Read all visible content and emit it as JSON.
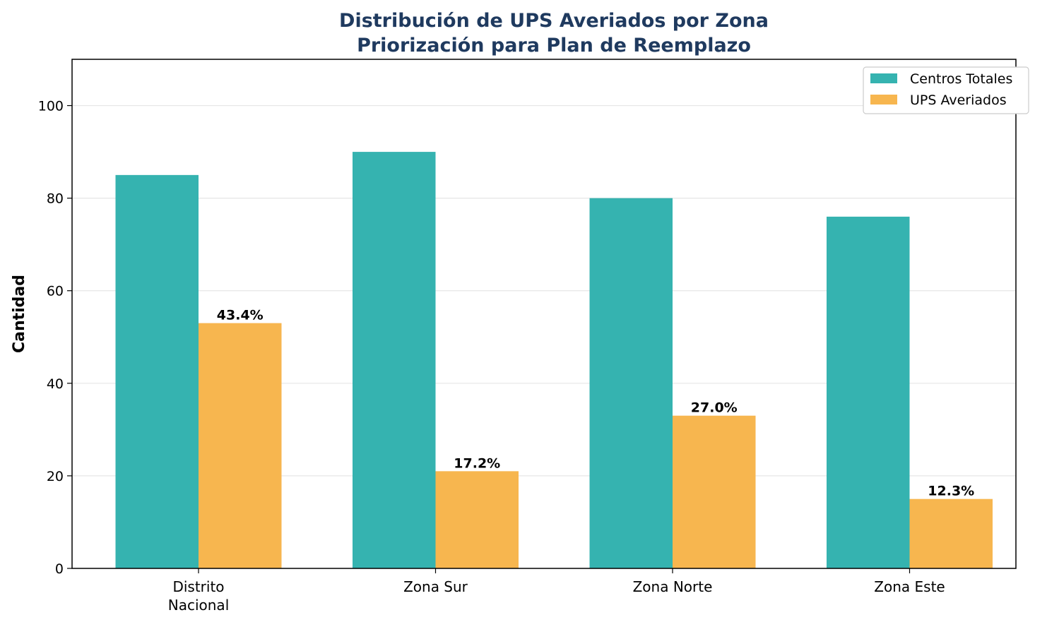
{
  "chart_data": {
    "type": "bar",
    "title": "Distribución de UPS Averiados por Zona",
    "subtitle": "Priorización para Plan de Reemplazo",
    "xlabel": "",
    "ylabel": "Cantidad",
    "categories": [
      "Distrito\nNacional",
      "Zona Sur",
      "Zona Norte",
      "Zona Este"
    ],
    "series": [
      {
        "name": "Centros Totales",
        "color": "#35b3b0",
        "values": [
          85,
          90,
          80,
          76
        ]
      },
      {
        "name": "UPS Averiados",
        "color": "#f7b64f",
        "values": [
          53,
          21,
          33,
          15
        ]
      }
    ],
    "data_labels": [
      "43.4%",
      "17.2%",
      "27.0%",
      "12.3%"
    ],
    "ylim": [
      0,
      110
    ],
    "yticks": [
      0,
      20,
      40,
      60,
      80,
      100
    ],
    "grid": "y",
    "legend": "top-right",
    "title_color": "#1f3a5f"
  }
}
